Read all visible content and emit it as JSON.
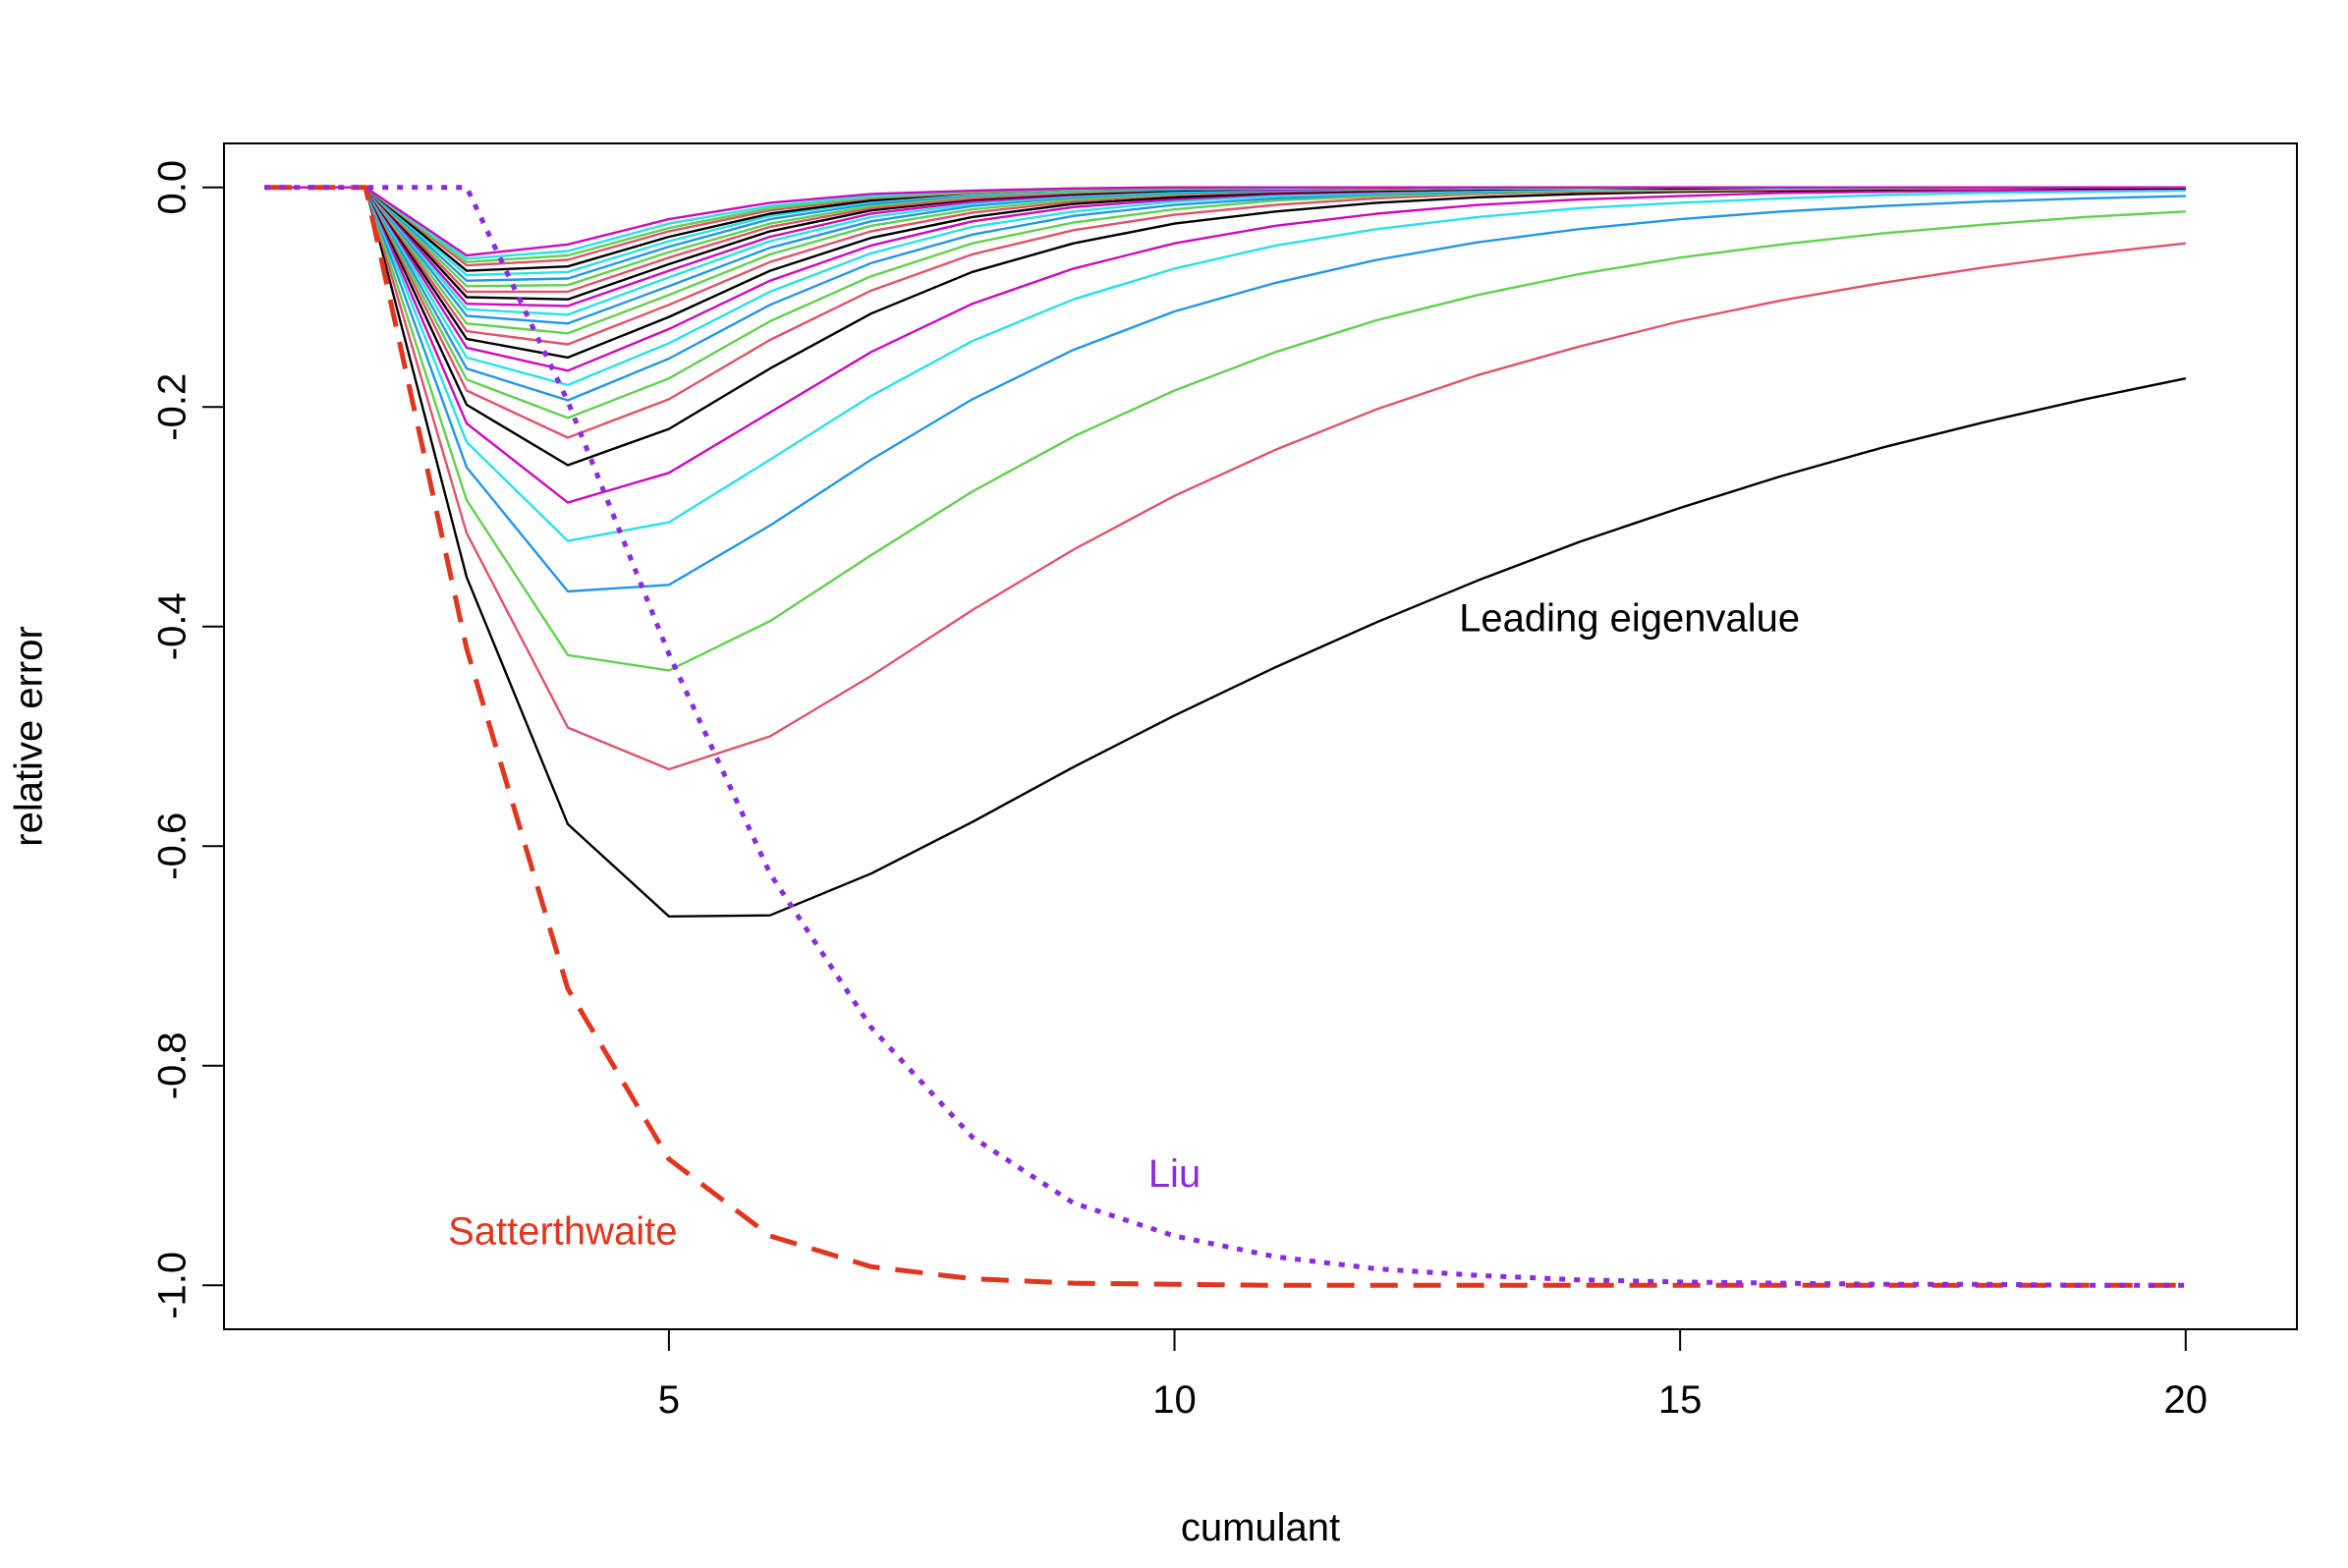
{
  "chart_data": {
    "type": "line",
    "title": "",
    "xlabel": "cumulant",
    "ylabel": "relative error",
    "xlim": [
      0.6,
      21.1
    ],
    "ylim": [
      -1.04,
      0.04
    ],
    "xticks": [
      5,
      10,
      15,
      20
    ],
    "yticks": [
      0.0,
      -0.2,
      -0.4,
      -0.6,
      -0.8,
      -1.0
    ],
    "xtick_labels": [
      "5",
      "10",
      "15",
      "20"
    ],
    "ytick_labels": [
      "0.0",
      "-0.2",
      "-0.4",
      "-0.6",
      "-0.8",
      "-1.0"
    ],
    "grid": false,
    "legend": "none",
    "x": [
      1,
      2,
      3,
      4,
      5,
      6,
      7,
      8,
      9,
      10,
      11,
      12,
      13,
      14,
      15,
      16,
      17,
      18,
      19,
      20
    ],
    "series": [
      {
        "color": "#000000",
        "values": [
          0,
          0,
          -0.355,
          -0.58,
          -0.664,
          -0.663,
          -0.625,
          -0.578,
          -0.528,
          -0.481,
          -0.437,
          -0.396,
          -0.358,
          -0.323,
          -0.292,
          -0.263,
          -0.237,
          -0.214,
          -0.193,
          -0.174
        ]
      },
      {
        "color": "#DF536B",
        "values": [
          0,
          0,
          -0.315,
          -0.492,
          -0.53,
          -0.5,
          -0.445,
          -0.385,
          -0.33,
          -0.281,
          -0.239,
          -0.202,
          -0.171,
          -0.145,
          -0.122,
          -0.103,
          -0.087,
          -0.073,
          -0.061,
          -0.051
        ]
      },
      {
        "color": "#61D04F",
        "values": [
          0,
          0,
          -0.285,
          -0.426,
          -0.44,
          -0.395,
          -0.335,
          -0.277,
          -0.227,
          -0.185,
          -0.15,
          -0.121,
          -0.098,
          -0.079,
          -0.064,
          -0.052,
          -0.042,
          -0.034,
          -0.027,
          -0.022
        ]
      },
      {
        "color": "#2297E6",
        "values": [
          0,
          0,
          -0.255,
          -0.368,
          -0.362,
          -0.308,
          -0.248,
          -0.193,
          -0.148,
          -0.113,
          -0.087,
          -0.066,
          -0.05,
          -0.038,
          -0.029,
          -0.022,
          -0.017,
          -0.013,
          -0.01,
          -0.008
        ]
      },
      {
        "color": "#28E2E5",
        "values": [
          0,
          0,
          -0.232,
          -0.322,
          -0.305,
          -0.248,
          -0.19,
          -0.14,
          -0.102,
          -0.074,
          -0.053,
          -0.038,
          -0.027,
          -0.019,
          -0.014,
          -0.01,
          -0.007,
          -0.005,
          -0.004,
          -0.003
        ]
      },
      {
        "color": "#CD0BBC",
        "values": [
          0,
          0,
          -0.215,
          -0.287,
          -0.26,
          -0.205,
          -0.15,
          -0.106,
          -0.074,
          -0.051,
          -0.035,
          -0.024,
          -0.016,
          -0.011,
          -0.008,
          -0.005,
          -0.004,
          -0.003,
          -0.002,
          -0.001
        ]
      },
      {
        "color": "#000000",
        "values": [
          0,
          0,
          -0.198,
          -0.253,
          -0.22,
          -0.165,
          -0.115,
          -0.077,
          -0.051,
          -0.033,
          -0.022,
          -0.014,
          -0.009,
          -0.006,
          -0.004,
          -0.003,
          -0.002,
          -0.001,
          -0.001,
          -0.001
        ]
      },
      {
        "color": "#DF536B",
        "values": [
          0,
          0,
          -0.185,
          -0.228,
          -0.193,
          -0.139,
          -0.094,
          -0.061,
          -0.039,
          -0.025,
          -0.016,
          -0.01,
          -0.006,
          -0.004,
          -0.003,
          -0.002,
          -0.001,
          -0.001,
          0,
          0
        ]
      },
      {
        "color": "#61D04F",
        "values": [
          0,
          0,
          -0.175,
          -0.21,
          -0.174,
          -0.122,
          -0.081,
          -0.051,
          -0.032,
          -0.02,
          -0.012,
          -0.008,
          -0.005,
          -0.003,
          -0.002,
          -0.001,
          -0.001,
          0,
          0,
          0
        ]
      },
      {
        "color": "#2297E6",
        "values": [
          0,
          0,
          -0.165,
          -0.194,
          -0.156,
          -0.107,
          -0.069,
          -0.043,
          -0.026,
          -0.016,
          -0.01,
          -0.006,
          -0.004,
          -0.002,
          -0.001,
          -0.001,
          0,
          0,
          0,
          0
        ]
      },
      {
        "color": "#28E2E5",
        "values": [
          0,
          0,
          -0.155,
          -0.18,
          -0.142,
          -0.095,
          -0.06,
          -0.036,
          -0.022,
          -0.013,
          -0.008,
          -0.005,
          -0.003,
          -0.002,
          -0.001,
          -0.001,
          0,
          0,
          0,
          0
        ]
      },
      {
        "color": "#CD0BBC",
        "values": [
          0,
          0,
          -0.146,
          -0.167,
          -0.129,
          -0.085,
          -0.053,
          -0.031,
          -0.018,
          -0.011,
          -0.006,
          -0.004,
          -0.002,
          -0.001,
          -0.001,
          0,
          0,
          0,
          0,
          0
        ]
      },
      {
        "color": "#000000",
        "values": [
          0,
          0,
          -0.138,
          -0.155,
          -0.118,
          -0.076,
          -0.046,
          -0.027,
          -0.015,
          -0.009,
          -0.005,
          -0.003,
          -0.002,
          -0.001,
          -0.001,
          0,
          0,
          0,
          0,
          0
        ]
      },
      {
        "color": "#DF536B",
        "values": [
          0,
          0,
          -0.131,
          -0.143,
          -0.107,
          -0.068,
          -0.04,
          -0.023,
          -0.013,
          -0.007,
          -0.004,
          -0.002,
          -0.001,
          -0.001,
          0,
          0,
          0,
          0,
          0,
          0
        ]
      },
      {
        "color": "#61D04F",
        "values": [
          0,
          0,
          -0.124,
          -0.133,
          -0.098,
          -0.061,
          -0.035,
          -0.02,
          -0.011,
          -0.006,
          -0.003,
          -0.002,
          -0.001,
          -0.001,
          0,
          0,
          0,
          0,
          0,
          0
        ]
      },
      {
        "color": "#2297E6",
        "values": [
          0,
          0,
          -0.117,
          -0.124,
          -0.09,
          -0.055,
          -0.031,
          -0.017,
          -0.009,
          -0.005,
          -0.003,
          -0.001,
          -0.001,
          0,
          0,
          0,
          0,
          0,
          0,
          0
        ]
      },
      {
        "color": "#28E2E5",
        "values": [
          0,
          0,
          -0.111,
          -0.116,
          -0.082,
          -0.049,
          -0.027,
          -0.015,
          -0.008,
          -0.004,
          -0.002,
          -0.001,
          -0.001,
          0,
          0,
          0,
          0,
          0,
          0,
          0
        ]
      },
      {
        "color": "#CD0BBC",
        "values": [
          0,
          0,
          -0.106,
          -0.108,
          -0.076,
          -0.045,
          -0.024,
          -0.013,
          -0.007,
          -0.003,
          -0.002,
          -0.001,
          0,
          0,
          0,
          0,
          0,
          0,
          0,
          0
        ]
      },
      {
        "color": "#000000",
        "values": [
          0,
          0,
          -0.1,
          -0.102,
          -0.07,
          -0.04,
          -0.021,
          -0.011,
          -0.006,
          -0.003,
          -0.001,
          -0.001,
          0,
          0,
          0,
          0,
          0,
          0,
          0,
          0
        ]
      },
      {
        "color": "#DF536B",
        "values": [
          0,
          0,
          -0.095,
          -0.095,
          -0.064,
          -0.036,
          -0.019,
          -0.01,
          -0.005,
          -0.002,
          -0.001,
          -0.001,
          0,
          0,
          0,
          0,
          0,
          0,
          0,
          0
        ]
      },
      {
        "color": "#61D04F",
        "values": [
          0,
          0,
          -0.09,
          -0.089,
          -0.059,
          -0.033,
          -0.017,
          -0.008,
          -0.004,
          -0.002,
          -0.001,
          0,
          0,
          0,
          0,
          0,
          0,
          0,
          0,
          0
        ]
      },
      {
        "color": "#2297E6",
        "values": [
          0,
          0,
          -0.085,
          -0.083,
          -0.054,
          -0.029,
          -0.015,
          -0.007,
          -0.003,
          -0.002,
          -0.001,
          0,
          0,
          0,
          0,
          0,
          0,
          0,
          0,
          0
        ]
      },
      {
        "color": "#28E2E5",
        "values": [
          0,
          0,
          -0.08,
          -0.077,
          -0.049,
          -0.026,
          -0.013,
          -0.006,
          -0.003,
          -0.001,
          -0.001,
          0,
          0,
          0,
          0,
          0,
          0,
          0,
          0,
          0
        ]
      },
      {
        "color": "#000000",
        "values": [
          0,
          0,
          -0.076,
          -0.072,
          -0.045,
          -0.024,
          -0.012,
          -0.005,
          -0.002,
          -0.001,
          0,
          0,
          0,
          0,
          0,
          0,
          0,
          0,
          0,
          0
        ]
      },
      {
        "color": "#DF536B",
        "values": [
          0,
          0,
          -0.071,
          -0.066,
          -0.04,
          -0.021,
          -0.01,
          -0.005,
          -0.002,
          -0.001,
          0,
          0,
          0,
          0,
          0,
          0,
          0,
          0,
          0,
          0
        ]
      },
      {
        "color": "#61D04F",
        "values": [
          0,
          0,
          -0.068,
          -0.062,
          -0.037,
          -0.019,
          -0.009,
          -0.004,
          -0.002,
          -0.001,
          0,
          0,
          0,
          0,
          0,
          0,
          0,
          0,
          0,
          0
        ]
      },
      {
        "color": "#28E2E5",
        "values": [
          0,
          0,
          -0.065,
          -0.058,
          -0.033,
          -0.017,
          -0.008,
          -0.003,
          -0.001,
          0,
          0,
          0,
          0,
          0,
          0,
          0,
          0,
          0,
          0,
          0
        ]
      },
      {
        "color": "#CD0BBC",
        "values": [
          0,
          0,
          -0.062,
          -0.052,
          -0.029,
          -0.014,
          -0.006,
          -0.003,
          -0.001,
          0,
          0,
          0,
          0,
          0,
          0,
          0,
          0,
          0,
          0,
          0
        ]
      },
      {
        "name": "Satterthwaite",
        "color": "#E0361F",
        "dash": "dashed",
        "values": [
          0,
          0,
          -0.42,
          -0.73,
          -0.885,
          -0.955,
          -0.983,
          -0.994,
          -0.998,
          -0.999,
          -1.0,
          -1.0,
          -1.0,
          -1.0,
          -1.0,
          -1.0,
          -1.0,
          -1.0,
          -1.0,
          -1.0
        ]
      },
      {
        "name": "Liu",
        "color": "#8A2BE2",
        "dash": "dotted",
        "values": [
          0,
          0,
          0,
          -0.195,
          -0.425,
          -0.625,
          -0.765,
          -0.865,
          -0.925,
          -0.955,
          -0.974,
          -0.985,
          -0.991,
          -0.995,
          -0.997,
          -0.998,
          -0.999,
          -0.999,
          -1.0,
          -1.0
        ]
      }
    ],
    "annotations": [
      {
        "text": "Leading eigenvalue",
        "x": 14.5,
        "y": -0.395,
        "color": "#000000"
      },
      {
        "text": "Liu",
        "x": 10.0,
        "y": -0.901,
        "color": "#8A2BE2"
      },
      {
        "text": "Satterthwaite",
        "x": 3.95,
        "y": -0.953,
        "color": "#E0361F"
      }
    ]
  }
}
